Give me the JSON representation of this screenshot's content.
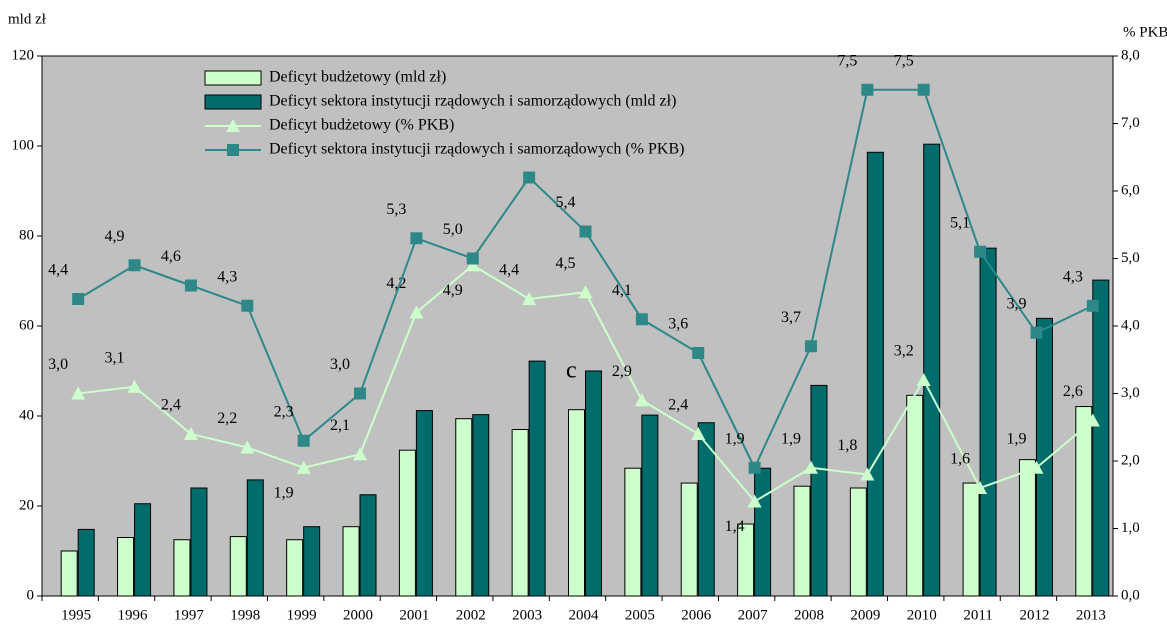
{
  "chart_data": {
    "type": "bar-line",
    "y_label": "mld zł",
    "y2_label": "% PKB",
    "annotation": "c",
    "categories": [
      "1995",
      "1996",
      "1997",
      "1998",
      "1999",
      "2000",
      "2001",
      "2002",
      "2003",
      "2004",
      "2005",
      "2006",
      "2007",
      "2008",
      "2009",
      "2010",
      "2011",
      "2012",
      "2013"
    ],
    "series": [
      {
        "name": "Deficyt budżetowy (mld zł)",
        "kind": "bar",
        "color": "#ccffcc",
        "values": [
          10,
          13,
          12.5,
          13.2,
          12.5,
          15.4,
          32.4,
          39.4,
          37,
          41.4,
          28.4,
          25.1,
          16,
          24.4,
          24,
          44.6,
          25.1,
          30.3,
          42.1
        ]
      },
      {
        "name": "Deficyt sektora instytucji rządowych i samorządowych (mld zł)",
        "kind": "bar",
        "color": "#006c6c",
        "values": [
          14.8,
          20.5,
          24,
          25.8,
          15.4,
          22.5,
          41.2,
          40.3,
          52.2,
          50,
          40.2,
          38.5,
          28.4,
          46.8,
          98.6,
          100.4,
          77.3,
          61.7,
          70.2
        ]
      },
      {
        "name": "Deficyt budżetowy (% PKB)",
        "kind": "line",
        "marker": "triangle",
        "axis": "y2",
        "color": "#ccffcc",
        "values": [
          3.0,
          3.1,
          2.4,
          2.2,
          1.9,
          2.1,
          4.2,
          4.9,
          4.4,
          4.5,
          2.9,
          2.4,
          1.4,
          1.9,
          1.8,
          3.2,
          1.6,
          1.9,
          2.6
        ],
        "value_labels": [
          "3,0",
          "3,1",
          "2,4",
          "2,2",
          "1,9",
          "2,1",
          "4,2",
          "4,9",
          "4,4",
          "4,5",
          "2,9",
          "2,4",
          "1,4",
          "1,9",
          "1,8",
          "3,2",
          "1,6",
          "1,9",
          "2,6"
        ]
      },
      {
        "name": "Deficyt sektora instytucji rządowych i samorządowych (% PKB)",
        "kind": "line",
        "marker": "square",
        "axis": "y2",
        "color": "#2e8888",
        "values": [
          4.4,
          4.9,
          4.6,
          4.3,
          2.3,
          3.0,
          5.3,
          5.0,
          6.2,
          5.4,
          4.1,
          3.6,
          1.9,
          3.7,
          7.5,
          7.5,
          5.1,
          3.9,
          4.3
        ],
        "value_labels": [
          "4,4",
          "4,9",
          "4,6",
          "4,3",
          "2,3",
          "3,0",
          "5,3",
          "5,0",
          null,
          "5,4",
          "4,1",
          "3,6",
          "1,9",
          "3,7",
          "7,5",
          "7,5",
          "5,1",
          "3,9",
          "4,3"
        ]
      }
    ],
    "ylim": [
      0,
      120
    ],
    "yticks": [
      0,
      20,
      40,
      60,
      80,
      100,
      120
    ],
    "y2lim": [
      0,
      8
    ],
    "y2ticks": [
      {
        "value": 0,
        "label": "0,0"
      },
      {
        "value": 1,
        "label": "1,0"
      },
      {
        "value": 2,
        "label": "2,0"
      },
      {
        "value": 3,
        "label": "3,0"
      },
      {
        "value": 4,
        "label": "4,0"
      },
      {
        "value": 5,
        "label": "5,0"
      },
      {
        "value": 6,
        "label": "6,0"
      },
      {
        "value": 7,
        "label": "7,0"
      },
      {
        "value": 8,
        "label": "8,0"
      }
    ],
    "background": "#c0c0c0",
    "legend": "top-left"
  }
}
